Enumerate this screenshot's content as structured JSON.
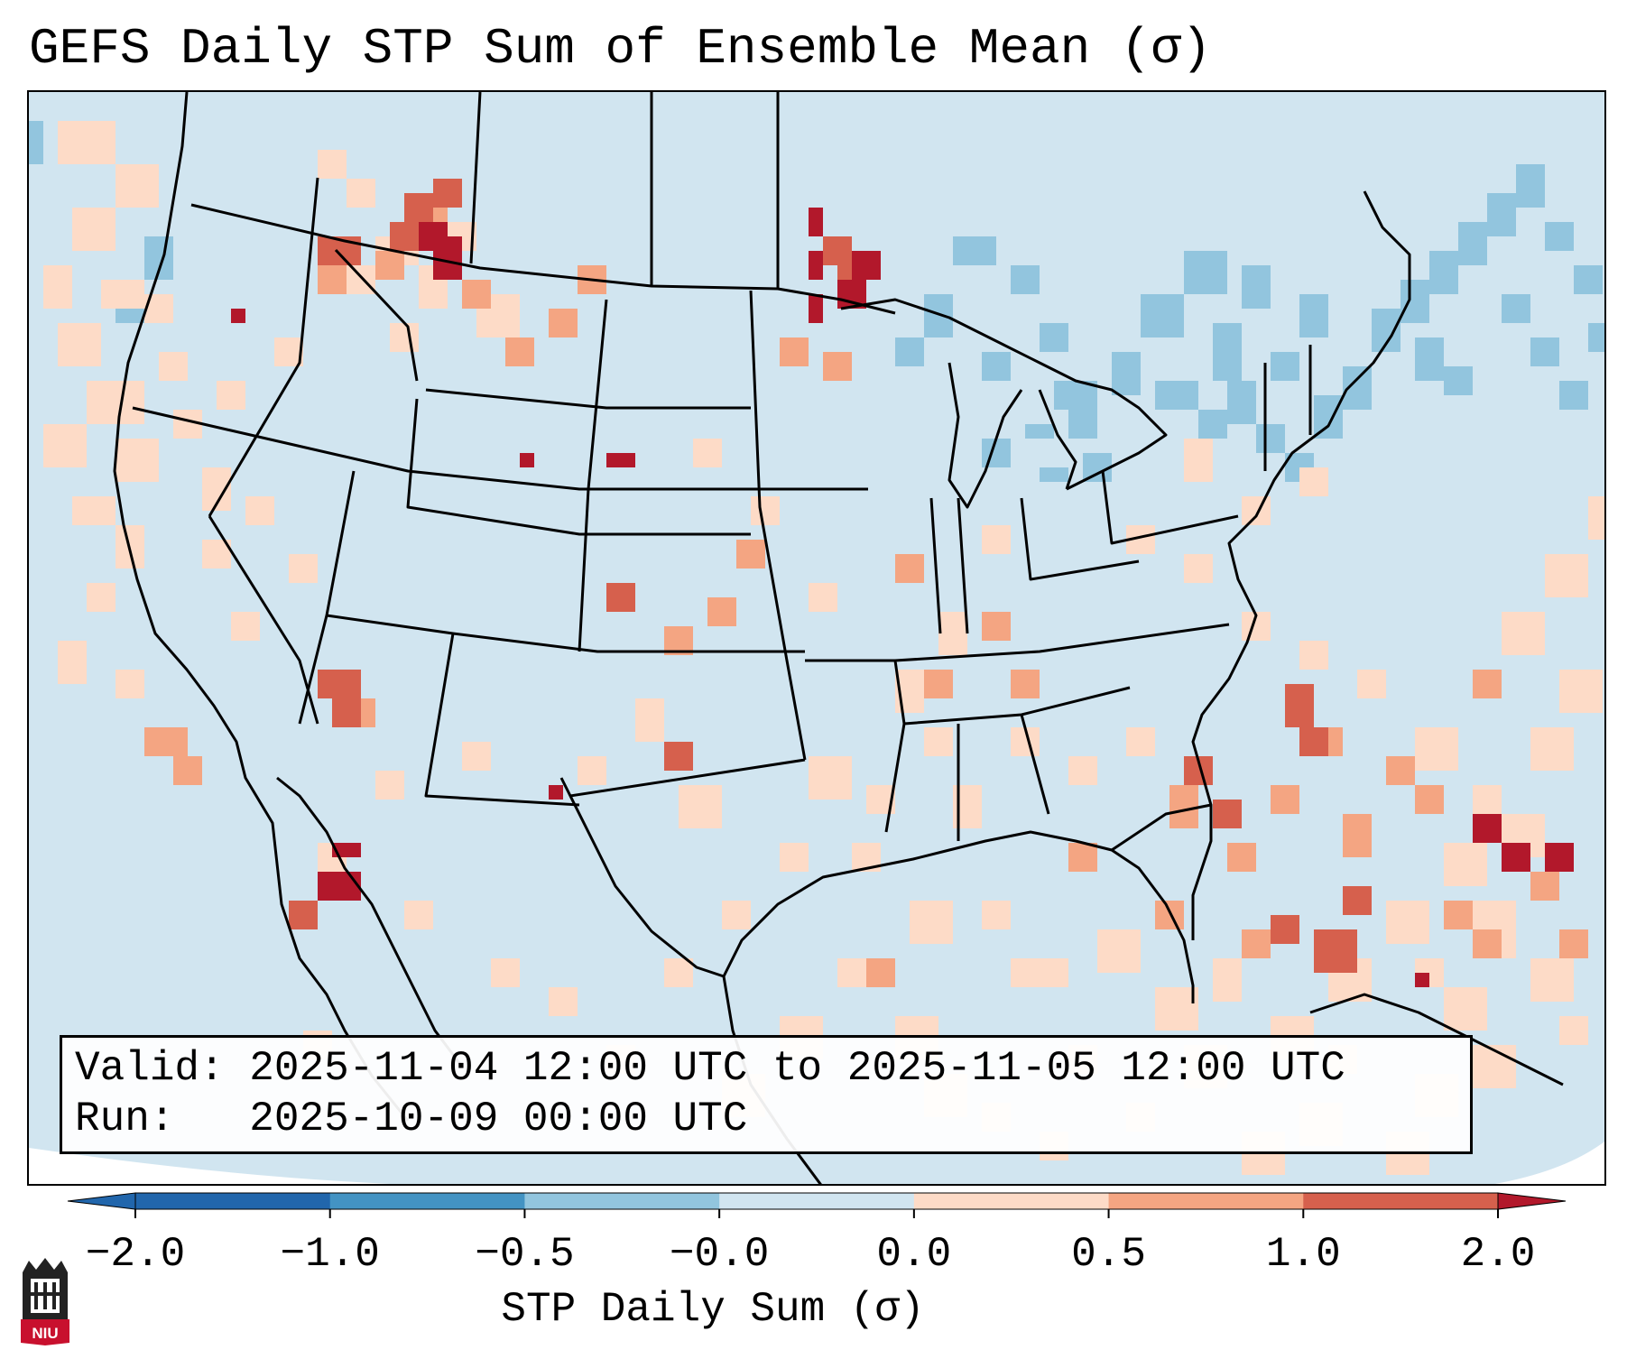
{
  "title": "GEFS Daily STP Sum of Ensemble Mean (σ)",
  "info": {
    "valid_label": "Valid:",
    "valid_value": "2025-11-04 12:00 UTC to 2025-11-05 12:00 UTC",
    "run_label": "Run:",
    "run_value": "2025-10-09 00:00 UTC"
  },
  "colorbar": {
    "label": "STP Daily Sum (σ)",
    "ticks": [
      "−2.0",
      "−1.0",
      "−0.5",
      "−0.0",
      "0.0",
      "0.5",
      "1.0",
      "2.0"
    ],
    "colors": [
      "#2166ac",
      "#4393c3",
      "#92c5de",
      "#d1e5f0",
      "#fddbc7",
      "#f4a582",
      "#d6604d",
      "#b2182b"
    ]
  },
  "logo": {
    "text": "NIU"
  },
  "map": {
    "background_color": "#d1e5f0",
    "anomaly_levels": [
      "light-blue",
      "light-red",
      "red",
      "dark-red"
    ]
  }
}
